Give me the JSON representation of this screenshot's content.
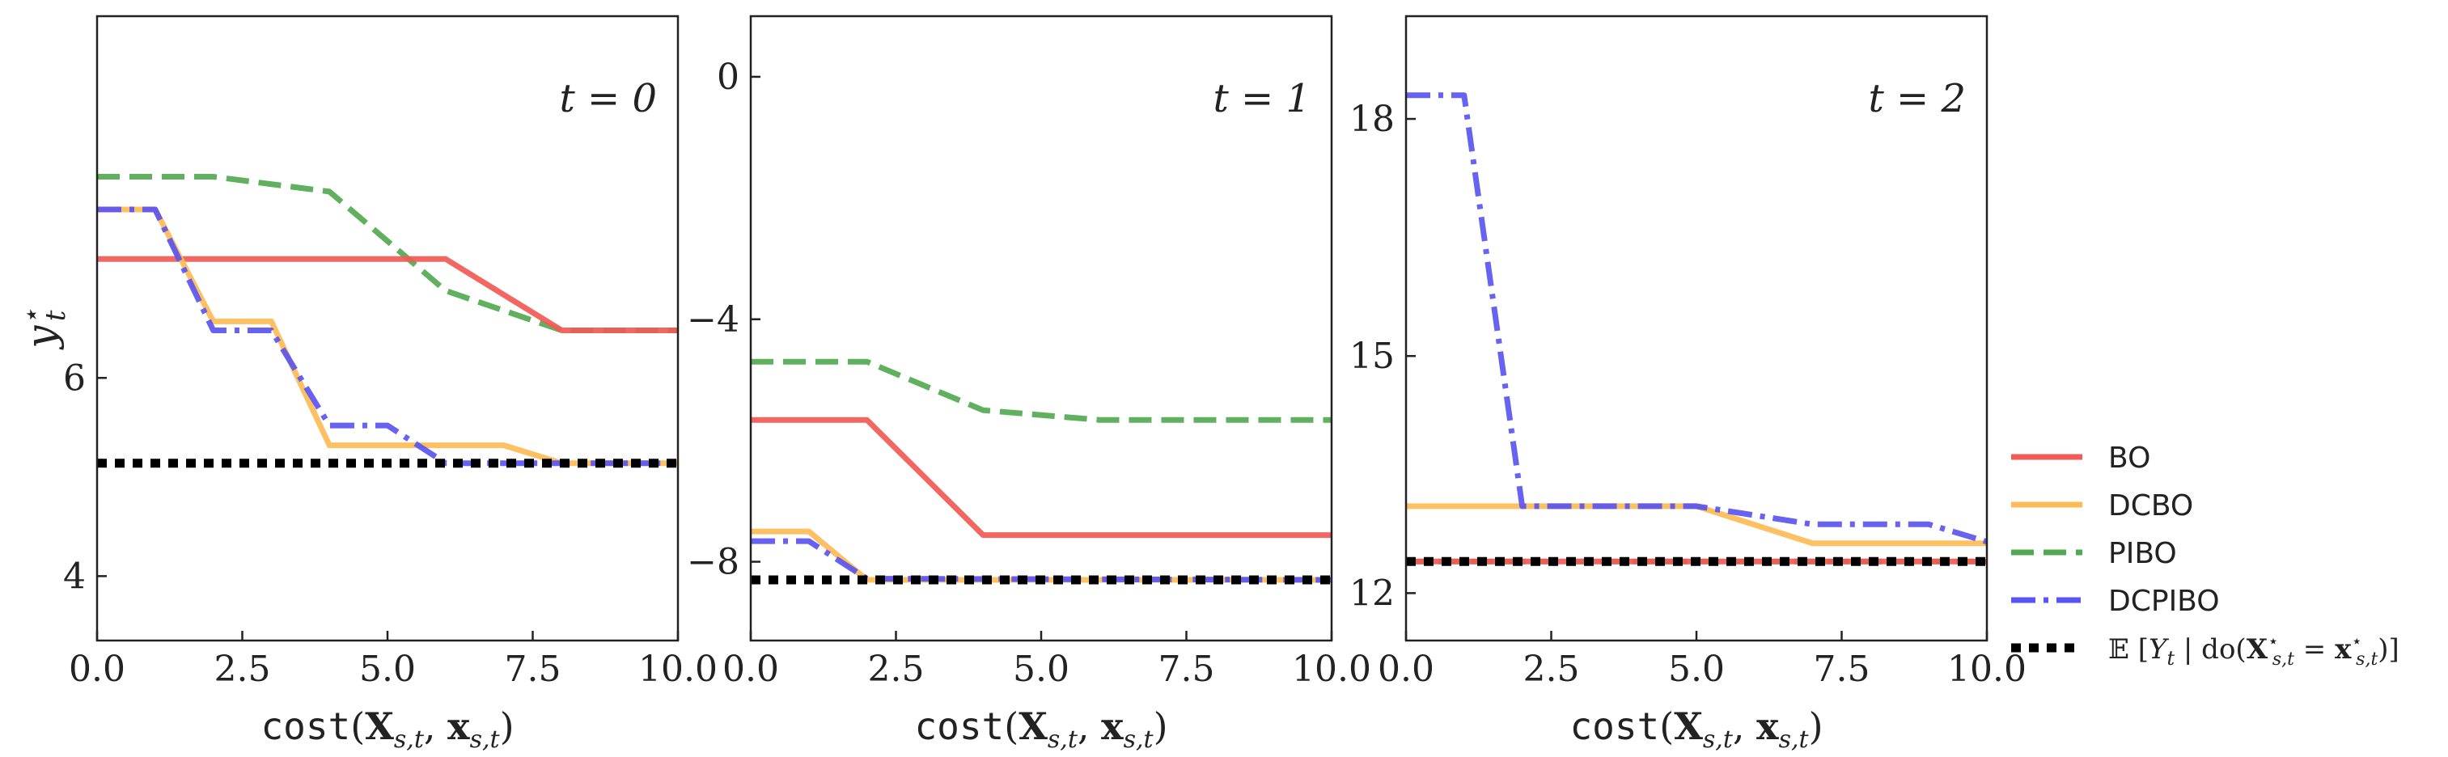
{
  "colors": {
    "BO": "#f25a55",
    "DCBO": "#fdbb55",
    "PIBO": "#53a953",
    "DCPIBO": "#5a55f0",
    "optimum": "#000000"
  },
  "ylabel": "y*_t",
  "legend": [
    {
      "key": "BO",
      "label": "BO",
      "style": "solid"
    },
    {
      "key": "DCBO",
      "label": "DCBO",
      "style": "solid"
    },
    {
      "key": "PIBO",
      "label": "PIBO",
      "style": "dashed"
    },
    {
      "key": "DCPIBO",
      "label": "DCPIBO",
      "style": "dashdot"
    },
    {
      "key": "optimum",
      "label": "𝔼 [Y_t | do(X*_{s,t} = x*_{s,t})]",
      "style": "dotted"
    }
  ],
  "chart_data": [
    {
      "type": "line",
      "panel_label": "t = 0",
      "xlabel": "cost(X_{s,t}, x_{s,t})",
      "ylabel": "y*_t",
      "xlim": [
        0,
        10
      ],
      "ylim": [
        3.35,
        9.65
      ],
      "xticks": [
        "0.0",
        "2.5",
        "5.0",
        "7.5",
        "10.0"
      ],
      "yticks": [
        {
          "value": 4,
          "label": "4"
        },
        {
          "value": 6,
          "label": "6"
        }
      ],
      "series": [
        {
          "name": "PIBO",
          "x": [
            0,
            2,
            4,
            6,
            8,
            10
          ],
          "y": [
            8.03,
            8.03,
            7.88,
            6.88,
            6.48,
            6.48
          ]
        },
        {
          "name": "BO",
          "x": [
            0,
            6,
            8,
            10
          ],
          "y": [
            7.2,
            7.2,
            6.48,
            6.48
          ]
        },
        {
          "name": "DCBO",
          "x": [
            0,
            1,
            2,
            3,
            4,
            7,
            8,
            10
          ],
          "y": [
            7.7,
            7.7,
            6.57,
            6.57,
            5.32,
            5.32,
            5.14,
            5.14
          ]
        },
        {
          "name": "DCPIBO",
          "x": [
            0,
            1,
            2,
            3,
            4,
            5,
            6,
            8,
            10
          ],
          "y": [
            7.7,
            7.7,
            6.48,
            6.48,
            5.52,
            5.52,
            5.14,
            5.14,
            5.14
          ]
        },
        {
          "name": "optimum",
          "x": [
            0,
            10
          ],
          "y": [
            5.14,
            5.14
          ]
        }
      ]
    },
    {
      "type": "line",
      "panel_label": "t = 1",
      "xlabel": "cost(X_{s,t}, x_{s,t})",
      "ylabel": "",
      "xlim": [
        0,
        10
      ],
      "ylim": [
        -9.3,
        1.0
      ],
      "xticks": [
        "0.0",
        "2.5",
        "5.0",
        "7.5",
        "10.0"
      ],
      "yticks": [
        {
          "value": 0,
          "label": "0"
        },
        {
          "value": -4,
          "label": "−4"
        },
        {
          "value": -8,
          "label": "−8"
        }
      ],
      "series": [
        {
          "name": "PIBO",
          "x": [
            0,
            2,
            4,
            6,
            8,
            10
          ],
          "y": [
            -4.7,
            -4.7,
            -5.5,
            -5.66,
            -5.66,
            -5.66
          ]
        },
        {
          "name": "BO",
          "x": [
            0,
            2,
            4,
            10
          ],
          "y": [
            -5.66,
            -5.66,
            -7.56,
            -7.56
          ]
        },
        {
          "name": "DCBO",
          "x": [
            0,
            1,
            2,
            4,
            10
          ],
          "y": [
            -7.5,
            -7.5,
            -8.3,
            -8.3,
            -8.3
          ]
        },
        {
          "name": "DCPIBO",
          "x": [
            0,
            1,
            2,
            10
          ],
          "y": [
            -7.66,
            -7.66,
            -8.28,
            -8.3
          ]
        },
        {
          "name": "optimum",
          "x": [
            0,
            10
          ],
          "y": [
            -8.3,
            -8.3
          ]
        }
      ]
    },
    {
      "type": "line",
      "panel_label": "t = 2",
      "xlabel": "cost(X_{s,t}, x_{s,t})",
      "ylabel": "",
      "xlim": [
        0,
        10
      ],
      "ylim": [
        11.4,
        19.3
      ],
      "xticks": [
        "0.0",
        "2.5",
        "5.0",
        "7.5",
        "10.0"
      ],
      "yticks": [
        {
          "value": 12,
          "label": "12"
        },
        {
          "value": 15,
          "label": "15"
        },
        {
          "value": 18,
          "label": "18"
        }
      ],
      "series": [
        {
          "name": "DCBO",
          "x": [
            0,
            5,
            7,
            10
          ],
          "y": [
            13.1,
            13.1,
            12.63,
            12.63
          ]
        },
        {
          "name": "DCPIBO",
          "x": [
            0,
            1,
            2,
            5,
            7,
            9,
            10
          ],
          "y": [
            18.3,
            18.3,
            13.1,
            13.1,
            12.87,
            12.87,
            12.65
          ]
        },
        {
          "name": "PIBO",
          "x": [
            0,
            10
          ],
          "y": [
            12.4,
            12.4
          ]
        },
        {
          "name": "BO",
          "x": [
            0,
            10
          ],
          "y": [
            12.4,
            12.4
          ]
        },
        {
          "name": "optimum",
          "x": [
            0,
            10
          ],
          "y": [
            12.4,
            12.4
          ]
        }
      ]
    }
  ]
}
